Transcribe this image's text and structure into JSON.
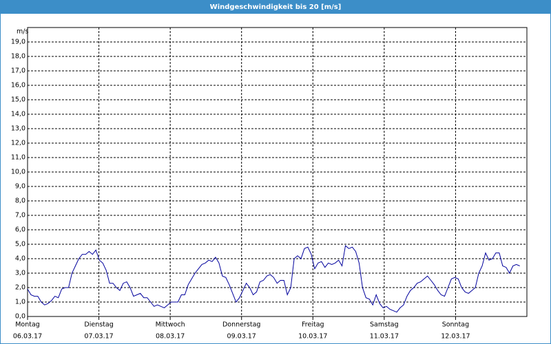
{
  "chart_data": {
    "type": "line",
    "title": "Windgeschwindigkeit bis 20 [m/s]",
    "y_label": "m/s",
    "color": "#00009c",
    "grid": true,
    "xlim": [
      0,
      168
    ],
    "xticks": [
      {
        "value": 0,
        "label": "Montag"
      },
      {
        "value": 24,
        "label": "Dienstag"
      },
      {
        "value": 48,
        "label": "Mittwoch"
      },
      {
        "value": 72,
        "label": "Donnerstag"
      },
      {
        "value": 96,
        "label": "Freitag"
      },
      {
        "value": 120,
        "label": "Samstag"
      },
      {
        "value": 144,
        "label": "Sonntag"
      }
    ],
    "xtick_dates": [
      "06.03.17",
      "07.03.17",
      "08.03.17",
      "09.03.17",
      "10.03.17",
      "11.03.17",
      "12.03.17"
    ],
    "ylim": [
      0,
      20
    ],
    "yticks": [
      {
        "value": 0,
        "label": "0,0"
      },
      {
        "value": 1,
        "label": "1,0"
      },
      {
        "value": 2,
        "label": "2,0"
      },
      {
        "value": 3,
        "label": "3,0"
      },
      {
        "value": 4,
        "label": "4,0"
      },
      {
        "value": 5,
        "label": "5,0"
      },
      {
        "value": 6,
        "label": "6,0"
      },
      {
        "value": 7,
        "label": "7,0"
      },
      {
        "value": 8,
        "label": "8,0"
      },
      {
        "value": 9,
        "label": "9,0"
      },
      {
        "value": 10,
        "label": "10,0"
      },
      {
        "value": 11,
        "label": "11,0"
      },
      {
        "value": 12,
        "label": "12,0"
      },
      {
        "value": 13,
        "label": "13,0"
      },
      {
        "value": 14,
        "label": "14,0"
      },
      {
        "value": 15,
        "label": "15,0"
      },
      {
        "value": 16,
        "label": "16,0"
      },
      {
        "value": 17,
        "label": "17,0"
      },
      {
        "value": 18,
        "label": "18,0"
      },
      {
        "value": 19,
        "label": "19,0"
      }
    ],
    "x": [
      0,
      1.15,
      2.3,
      3.45,
      4.6,
      5.75,
      6.9,
      8.05,
      9.2,
      10.35,
      11.5,
      12.65,
      13.8,
      14.95,
      16.1,
      17.25,
      18.4,
      19.55,
      20.7,
      21.85,
      23,
      24.15,
      25.3,
      26.45,
      27.6,
      28.75,
      29.9,
      31.05,
      32.2,
      33.35,
      34.5,
      35.65,
      36.8,
      37.95,
      39.1,
      40.25,
      41.4,
      42.55,
      43.7,
      44.85,
      46,
      47.15,
      48.3,
      49.45,
      50.6,
      51.75,
      52.9,
      54.05,
      55.2,
      56.35,
      57.5,
      58.65,
      59.8,
      60.95,
      62.1,
      63.25,
      64.4,
      65.55,
      66.7,
      67.85,
      69,
      70.15,
      71.3,
      72.45,
      73.6,
      74.75,
      75.9,
      77.05,
      78.2,
      79.35,
      80.5,
      81.65,
      82.8,
      83.95,
      85.1,
      86.25,
      87.4,
      88.55,
      89.7,
      90.85,
      92,
      93.15,
      94.3,
      95.45,
      96.6,
      97.75,
      98.9,
      100.05,
      101.2,
      102.35,
      103.5,
      104.65,
      105.8,
      106.95,
      108.1,
      109.25,
      110.4,
      111.55,
      112.7,
      113.85,
      115,
      116.15,
      117.3,
      118.45,
      119.6,
      120.75,
      121.9,
      123.05,
      124.2,
      125.35,
      126.5,
      127.65,
      128.8,
      129.95,
      131.1,
      132.25,
      133.4,
      134.55,
      135.7,
      136.85,
      138,
      139.15,
      140.3,
      141.45,
      142.6,
      143.75,
      144.9,
      146.05,
      147.2,
      148.35,
      149.5,
      150.65,
      151.8,
      152.95,
      154.1,
      155.25,
      156.4,
      157.55,
      158.7,
      159.85,
      161,
      162.15,
      163.3,
      164.45,
      165.6
    ],
    "values": [
      1.9,
      1.5,
      1.4,
      1.4,
      1.0,
      0.8,
      0.9,
      1.1,
      1.4,
      1.3,
      1.9,
      2.0,
      2.0,
      3.0,
      3.5,
      4.0,
      4.3,
      4.3,
      4.5,
      4.3,
      4.6,
      3.9,
      3.7,
      3.2,
      2.3,
      2.3,
      2.0,
      1.8,
      2.3,
      2.4,
      2.0,
      1.4,
      1.5,
      1.6,
      1.3,
      1.3,
      1.0,
      0.7,
      0.8,
      0.7,
      0.6,
      0.8,
      1.0,
      1.0,
      1.0,
      1.5,
      1.5,
      2.2,
      2.6,
      3.0,
      3.3,
      3.6,
      3.7,
      3.9,
      3.8,
      4.1,
      3.7,
      2.8,
      2.7,
      2.2,
      1.6,
      1.0,
      1.3,
      1.8,
      2.3,
      2.0,
      1.5,
      1.7,
      2.4,
      2.5,
      2.8,
      2.9,
      2.7,
      2.3,
      2.5,
      2.5,
      1.5,
      2.0,
      4.0,
      4.2,
      4.0,
      4.7,
      4.8,
      4.3,
      3.3,
      3.7,
      3.8,
      3.4,
      3.7,
      3.6,
      3.7,
      3.9,
      3.5,
      4.9,
      4.7,
      4.8,
      4.5,
      3.7,
      2.0,
      1.3,
      1.2,
      0.8,
      1.5,
      0.9,
      0.6,
      0.7,
      0.5,
      0.4,
      0.3,
      0.6,
      0.8,
      1.4,
      1.8,
      2.0,
      2.3,
      2.4,
      2.6,
      2.8,
      2.5,
      2.2,
      1.8,
      1.5,
      1.4,
      2.0,
      2.6,
      2.7,
      2.6,
      2.0,
      1.7,
      1.6,
      1.8,
      2.0,
      3.0,
      3.5,
      4.4,
      3.9,
      4.0,
      4.4,
      4.4,
      3.5,
      3.4,
      3.0,
      3.5,
      3.6,
      3.5
    ]
  }
}
